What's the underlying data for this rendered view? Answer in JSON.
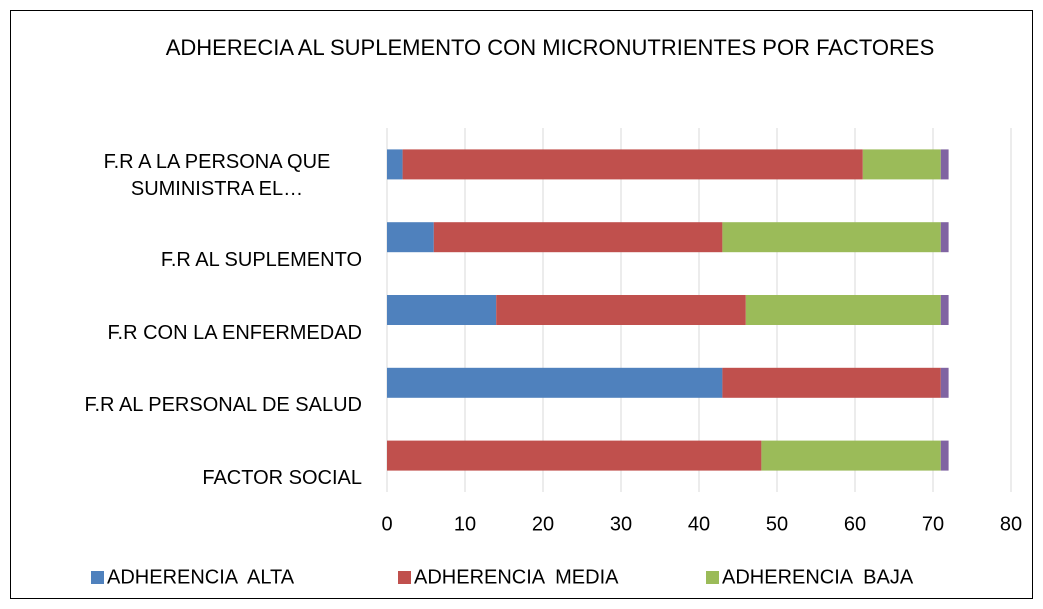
{
  "chart_data": {
    "type": "stacked-barh",
    "title": "ADHERECIA AL SUPLEMENTO CON MICRONUTRIENTES  POR FACTORES",
    "categories": [
      "F.R A LA PERSONA QUE SUMINISTRA EL…",
      "F.R AL SUPLEMENTO",
      "F.R CON LA ENFERMEDAD",
      "F.R AL PERSONAL DE SALUD",
      "FACTOR SOCIAL"
    ],
    "series": [
      {
        "name": "ADHERENCIA  ALTA",
        "color": "#4f81bd",
        "values": [
          2,
          6,
          14,
          43,
          0
        ]
      },
      {
        "name": "ADHERENCIA  MEDIA",
        "color": "#c0504d",
        "values": [
          59,
          37,
          32,
          28,
          48
        ]
      },
      {
        "name": "ADHERENCIA  BAJA",
        "color": "#9bbb59",
        "values": [
          10,
          28,
          25,
          0,
          23
        ]
      },
      {
        "color": "#8064a2",
        "values": [
          1,
          1,
          1,
          1,
          1
        ]
      }
    ],
    "xlim": [
      0,
      80
    ],
    "xticks": [
      0,
      10,
      20,
      30,
      40,
      50,
      60,
      70,
      80
    ],
    "grid": true,
    "legend": "bottom"
  }
}
